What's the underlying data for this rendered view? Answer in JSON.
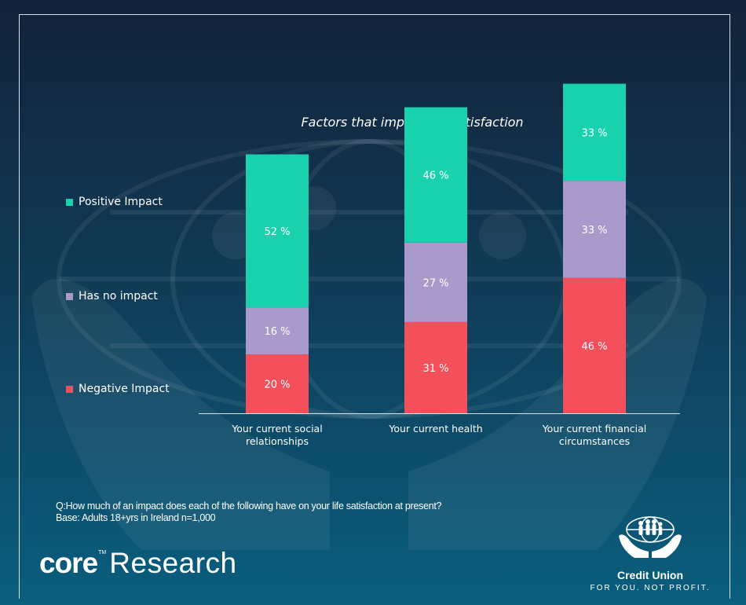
{
  "chart_data": {
    "type": "bar",
    "stacked": true,
    "title": "Factors that impact life satisfaction",
    "categories": [
      [
        "Your current social",
        "relationships"
      ],
      [
        "Your current health"
      ],
      [
        "Your current financial",
        "circumstances"
      ]
    ],
    "series": [
      {
        "name": "Negative Impact",
        "values": [
          20,
          31,
          46
        ],
        "color": "#f4505c"
      },
      {
        "name": "Has no impact",
        "values": [
          16,
          27,
          33
        ],
        "color": "#a99acb"
      },
      {
        "name": "Positive Impact",
        "values": [
          52,
          46,
          33
        ],
        "color": "#19d1ad"
      }
    ],
    "value_suffix": " %",
    "legend_position": "left",
    "grid": false
  },
  "footer": {
    "question": "Q:How much of an impact does each of the following have on your life satisfaction at present?",
    "base": "Base: Adults 18+yrs in Ireland n=1,000"
  },
  "branding": {
    "core_word": "core",
    "core_tm": "TM",
    "research_word": "Research",
    "credit_union_name": "Credit Union",
    "credit_union_tagline": "FOR YOU. NOT PROFIT."
  }
}
